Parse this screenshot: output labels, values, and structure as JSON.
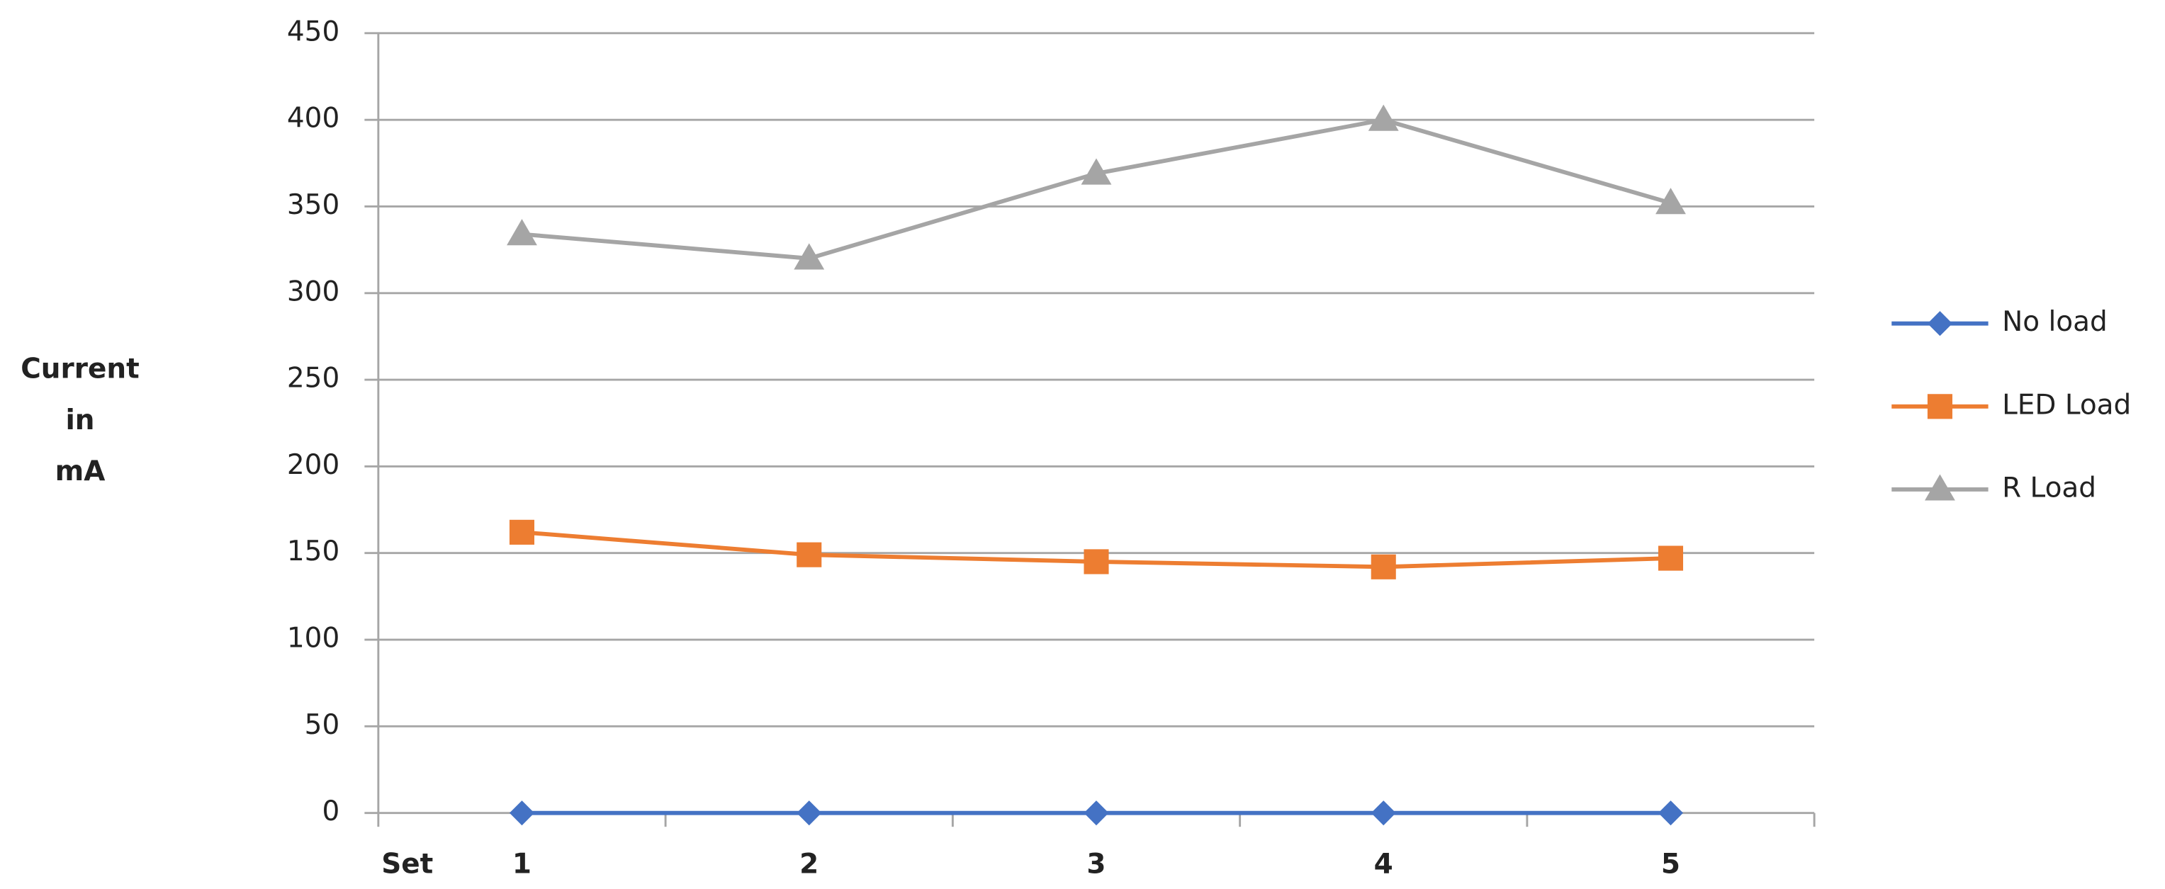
{
  "chart_data": {
    "type": "line",
    "ylabel": [
      "Current",
      "in",
      "mA"
    ],
    "xlabel": "Set",
    "categories": [
      "1",
      "2",
      "3",
      "4",
      "5"
    ],
    "series": [
      {
        "name": "No load",
        "color": "#4472c4",
        "marker": "diamond",
        "values": [
          0,
          0,
          0,
          0,
          0
        ]
      },
      {
        "name": "LED Load",
        "color": "#ed7d31",
        "marker": "square",
        "values": [
          162,
          149,
          145,
          142,
          147
        ]
      },
      {
        "name": "R Load",
        "color": "#a5a5a5",
        "marker": "triangle",
        "values": [
          334,
          320,
          369,
          400,
          352
        ]
      }
    ],
    "ylim": [
      0,
      450
    ],
    "yticks": [
      0,
      50,
      100,
      150,
      200,
      250,
      300,
      350,
      400,
      450
    ],
    "grid": true,
    "legend": "right"
  }
}
